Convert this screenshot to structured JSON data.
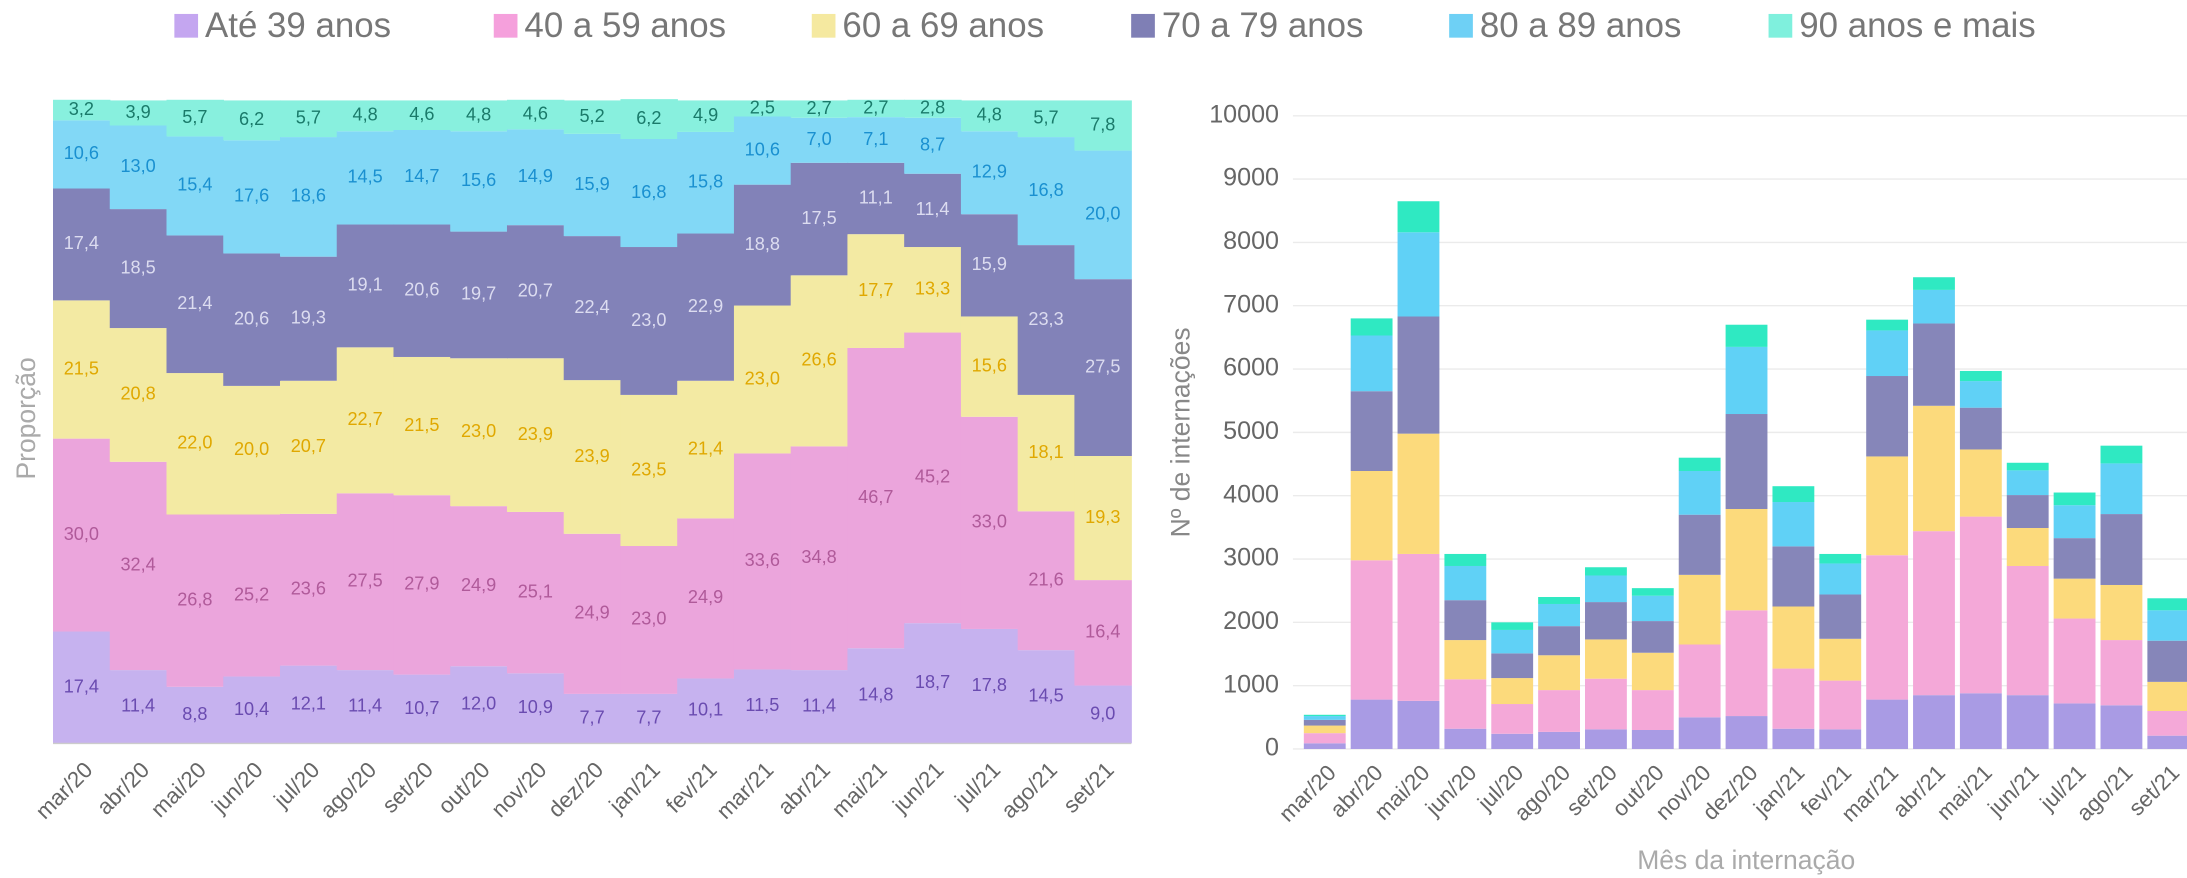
{
  "chart_data": [
    {
      "type": "stacked-column-100",
      "y_label": "Proporção",
      "ylim": [
        0,
        100
      ],
      "categories": [
        "mar/20",
        "abr/20",
        "mai/20",
        "jun/20",
        "jul/20",
        "ago/20",
        "set/20",
        "out/20",
        "nov/20",
        "dez/20",
        "jan/21",
        "fev/21",
        "mar/21",
        "abr/21",
        "mai/21",
        "jun/21",
        "jul/21",
        "ago/21",
        "set/21"
      ],
      "series": [
        {
          "name": "Até 39 anos",
          "color": "#c6b2ef",
          "legend_color": "#c4a6f0",
          "label_color": "#6a4bb0",
          "values": [
            17.4,
            11.4,
            8.8,
            10.4,
            12.1,
            11.4,
            10.7,
            12.0,
            10.9,
            7.7,
            7.7,
            10.1,
            11.5,
            11.4,
            14.8,
            18.7,
            17.8,
            14.5,
            9.0
          ],
          "value_labels": [
            "17,4",
            "11,4",
            "8,8",
            "10,4",
            "12,1",
            "11,4",
            "10,7",
            "12,0",
            "10,9",
            "7,7",
            "7,7",
            "10,1",
            "11,5",
            "11,4",
            "14,8",
            "18,7",
            "17,8",
            "14,5",
            "9,0"
          ]
        },
        {
          "name": "40 a 59 anos",
          "color": "#eba5dc",
          "legend_color": "#f5a0dc",
          "label_color": "#b05a9a",
          "values": [
            30.0,
            32.4,
            26.8,
            25.2,
            23.6,
            27.5,
            27.9,
            24.9,
            25.1,
            24.9,
            23.0,
            24.9,
            33.6,
            34.8,
            46.7,
            45.2,
            33.0,
            21.6,
            16.4
          ],
          "value_labels": [
            "30,0",
            "32,4",
            "26,8",
            "25,2",
            "23,6",
            "27,5",
            "27,9",
            "24,9",
            "25,1",
            "24,9",
            "23,0",
            "24,9",
            "33,6",
            "34,8",
            "46,7",
            "45,2",
            "33,0",
            "21,6",
            "16,4"
          ]
        },
        {
          "name": "60 a 69 anos",
          "color": "#f3eaa3",
          "legend_color": "#f5e9a0",
          "label_color": "#e0a800",
          "values": [
            21.5,
            20.8,
            22.0,
            20.0,
            20.7,
            22.7,
            21.5,
            23.0,
            23.9,
            23.9,
            23.5,
            21.4,
            23.0,
            26.6,
            17.7,
            13.3,
            15.6,
            18.1,
            19.3
          ],
          "value_labels": [
            "21,5",
            "20,8",
            "22,0",
            "20,0",
            "20,7",
            "22,7",
            "21,5",
            "23,0",
            "23,9",
            "23,9",
            "23,5",
            "21,4",
            "23,0",
            "26,6",
            "17,7",
            "13,3",
            "15,6",
            "18,1",
            "19,3"
          ]
        },
        {
          "name": "70 a 79 anos",
          "color": "#8282b8",
          "legend_color": "#7f7fb5",
          "label_color": "#dcdcf0",
          "values": [
            17.4,
            18.5,
            21.4,
            20.6,
            19.3,
            19.1,
            20.6,
            19.7,
            20.7,
            22.4,
            23.0,
            22.9,
            18.8,
            17.5,
            11.1,
            11.4,
            15.9,
            23.3,
            27.5
          ],
          "value_labels": [
            "17,4",
            "18,5",
            "21,4",
            "20,6",
            "19,3",
            "19,1",
            "20,6",
            "19,7",
            "20,7",
            "22,4",
            "23,0",
            "22,9",
            "18,8",
            "17,5",
            "11,1",
            "11,4",
            "15,9",
            "23,3",
            "27,5"
          ]
        },
        {
          "name": "80 a 89 anos",
          "color": "#82d8f6",
          "legend_color": "#6ed0f5",
          "label_color": "#1a90d0",
          "values": [
            10.6,
            13.0,
            15.4,
            17.6,
            18.6,
            14.5,
            14.7,
            15.6,
            14.9,
            15.9,
            16.8,
            15.8,
            10.6,
            7.0,
            7.1,
            8.7,
            12.9,
            16.8,
            20.0
          ],
          "value_labels": [
            "10,6",
            "13,0",
            "15,4",
            "17,6",
            "18,6",
            "14,5",
            "14,7",
            "15,6",
            "14,9",
            "15,9",
            "16,8",
            "15,8",
            "10,6",
            "7,0",
            "7,1",
            "8,7",
            "12,9",
            "16,8",
            "20,0"
          ]
        },
        {
          "name": "90 anos e mais",
          "color": "#88f0de",
          "legend_color": "#7ff0dd",
          "label_color": "#1a7a6a",
          "values": [
            3.2,
            3.9,
            5.7,
            6.2,
            5.7,
            4.8,
            4.6,
            4.8,
            4.6,
            5.2,
            6.2,
            4.9,
            2.5,
            2.7,
            2.7,
            2.8,
            4.8,
            5.7,
            7.8
          ],
          "value_labels": [
            "3,2",
            "3,9",
            "5,7",
            "6,2",
            "5,7",
            "4,8",
            "4,6",
            "4,8",
            "4,6",
            "5,2",
            "6,2",
            "4,9",
            "2,5",
            "2,7",
            "2,7",
            "2,8",
            "4,8",
            "5,7",
            "7,8"
          ]
        }
      ]
    },
    {
      "type": "stacked-bar",
      "y_label": "Nº de internações",
      "x_label": "Mês da internação",
      "ylim": [
        0,
        10000
      ],
      "yticks": [
        0,
        1000,
        2000,
        3000,
        4000,
        5000,
        6000,
        7000,
        8000,
        9000,
        10000
      ],
      "grid": true,
      "categories": [
        "mar/20",
        "abr/20",
        "mai/20",
        "jun/20",
        "jul/20",
        "ago/20",
        "set/20",
        "out/20",
        "nov/20",
        "dez/20",
        "jan/21",
        "fev/21",
        "mar/21",
        "abr/21",
        "mai/21",
        "jun/21",
        "jul/21",
        "ago/21",
        "set/21"
      ],
      "series": [
        {
          "color": "#a99be4",
          "values": [
            90,
            780,
            760,
            320,
            240,
            270,
            310,
            300,
            500,
            520,
            320,
            310,
            780,
            850,
            880,
            850,
            720,
            690,
            210
          ]
        },
        {
          "color": "#f4a8d8",
          "values": [
            160,
            2200,
            2320,
            780,
            470,
            660,
            800,
            630,
            1150,
            1670,
            950,
            770,
            2280,
            2590,
            2790,
            2040,
            1340,
            1030,
            390
          ]
        },
        {
          "color": "#fcda7c",
          "values": [
            120,
            1410,
            1900,
            620,
            410,
            550,
            620,
            590,
            1100,
            1600,
            980,
            660,
            1560,
            1980,
            1060,
            600,
            630,
            870,
            460
          ]
        },
        {
          "color": "#8686b9",
          "values": [
            90,
            1260,
            1850,
            630,
            390,
            460,
            590,
            500,
            950,
            1500,
            950,
            700,
            1270,
            1300,
            660,
            520,
            640,
            1120,
            650
          ]
        },
        {
          "color": "#60d1f6",
          "values": [
            60,
            880,
            1330,
            540,
            370,
            350,
            420,
            400,
            690,
            1060,
            700,
            490,
            720,
            530,
            420,
            390,
            520,
            800,
            480
          ]
        },
        {
          "color": "#2fe9c2",
          "values": [
            20,
            270,
            490,
            190,
            120,
            110,
            130,
            120,
            210,
            350,
            250,
            150,
            170,
            200,
            160,
            120,
            200,
            280,
            190
          ]
        }
      ]
    }
  ]
}
